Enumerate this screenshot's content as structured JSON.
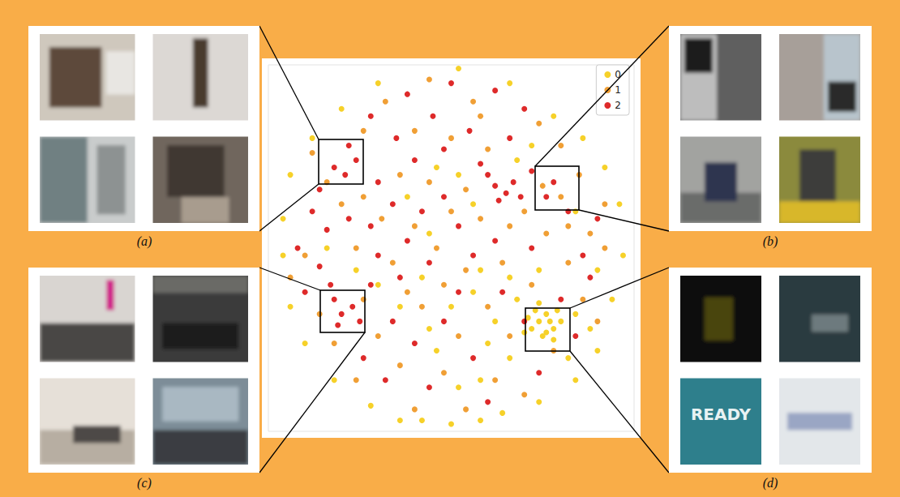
{
  "chart_data": {
    "type": "scatter",
    "marker": "circle",
    "legend": "upper right",
    "grid": false,
    "tick_labels": false,
    "xlim": [
      0,
      100
    ],
    "ylim": [
      0,
      100
    ],
    "series": [
      {
        "name": "0",
        "color": "#f6cf1d",
        "x": [
          52,
          30,
          66,
          20,
          78,
          12,
          86,
          6,
          92,
          4,
          96,
          4,
          97,
          6,
          94,
          10,
          90,
          18,
          84,
          28,
          74,
          42,
          58,
          50,
          64,
          36,
          72,
          74,
          76,
          78,
          75,
          73,
          77,
          79,
          71,
          76,
          74,
          80,
          70,
          78,
          50,
          56,
          46,
          60,
          66,
          58,
          52,
          44,
          62,
          68,
          84,
          82,
          88,
          74,
          66,
          58,
          42,
          36,
          30,
          44,
          56,
          38,
          46,
          68,
          72,
          52,
          84,
          90,
          16,
          24
        ],
        "values": [
          99,
          95,
          95,
          88,
          86,
          80,
          80,
          70,
          72,
          58,
          62,
          48,
          48,
          34,
          36,
          24,
          22,
          14,
          14,
          7,
          8,
          3,
          3,
          2,
          5,
          3,
          28,
          30,
          32,
          28,
          26,
          33,
          30,
          33,
          31,
          27,
          35,
          30,
          27,
          25,
          34,
          38,
          22,
          24,
          20,
          14,
          12,
          28,
          30,
          36,
          32,
          20,
          28,
          44,
          42,
          44,
          42,
          34,
          40,
          54,
          62,
          64,
          72,
          74,
          78,
          70,
          60,
          44,
          50,
          44
        ]
      },
      {
        "name": "1",
        "color": "#ef9a2a",
        "x": [
          44,
          56,
          32,
          74,
          80,
          26,
          40,
          50,
          60,
          85,
          16,
          26,
          36,
          44,
          54,
          70,
          80,
          75,
          88,
          20,
          31,
          40,
          50,
          58,
          66,
          76,
          10,
          24,
          34,
          46,
          54,
          64,
          82,
          92,
          6,
          14,
          26,
          38,
          48,
          60,
          72,
          86,
          90,
          18,
          30,
          42,
          52,
          66,
          78,
          24,
          36,
          48,
          62,
          70,
          54,
          40,
          82,
          12,
          92,
          58
        ],
        "values": [
          96,
          90,
          90,
          84,
          78,
          82,
          82,
          80,
          77,
          70,
          68,
          64,
          70,
          68,
          66,
          60,
          64,
          67,
          54,
          62,
          58,
          56,
          60,
          58,
          56,
          54,
          48,
          50,
          46,
          50,
          44,
          46,
          46,
          50,
          42,
          32,
          36,
          38,
          40,
          34,
          40,
          36,
          30,
          24,
          26,
          34,
          26,
          26,
          22,
          14,
          18,
          16,
          14,
          10,
          6,
          6,
          56,
          76,
          62,
          86
        ]
      },
      {
        "name": "2",
        "color": "#dc1f1f",
        "x": [
          50,
          38,
          62,
          28,
          45,
          70,
          22,
          35,
          55,
          66,
          18,
          24,
          21,
          30,
          40,
          48,
          58,
          62,
          65,
          67,
          63,
          69,
          60,
          72,
          78,
          76,
          82,
          12,
          16,
          22,
          28,
          34,
          42,
          48,
          52,
          38,
          30,
          14,
          10,
          18,
          20,
          23,
          19,
          25,
          17,
          28,
          36,
          44,
          56,
          62,
          72,
          86,
          34,
          40,
          48,
          26,
          32,
          44,
          56,
          64,
          70,
          80,
          88,
          60,
          74,
          84,
          8,
          14,
          90,
          52
        ],
        "values": [
          95,
          92,
          93,
          86,
          86,
          88,
          78,
          80,
          82,
          80,
          72,
          74,
          70,
          68,
          74,
          77,
          73,
          67,
          65,
          68,
          63,
          64,
          70,
          71,
          68,
          64,
          60,
          60,
          55,
          58,
          56,
          62,
          60,
          64,
          56,
          52,
          48,
          45,
          38,
          36,
          32,
          34,
          29,
          30,
          40,
          40,
          42,
          46,
          48,
          52,
          50,
          48,
          30,
          24,
          30,
          20,
          14,
          12,
          20,
          38,
          30,
          36,
          42,
          8,
          16,
          26,
          50,
          66,
          58,
          38
        ]
      }
    ]
  },
  "panels": [
    {
      "label": "(a)"
    },
    {
      "label": "(b)"
    },
    {
      "label": "(c)"
    },
    {
      "label": "(d)",
      "image_text": "READY"
    }
  ]
}
